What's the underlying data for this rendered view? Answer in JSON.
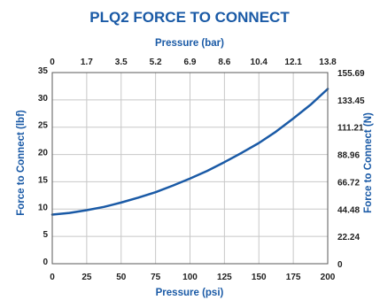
{
  "chart_data": {
    "type": "line",
    "title": "PLQ2 FORCE TO CONNECT",
    "xlabel": "Pressure (psi)",
    "x2label": "Pressure (bar)",
    "ylabel": "Force to Connect (lbf)",
    "y2label": "Force to Connect (N)",
    "xlim": [
      0,
      200
    ],
    "ylim": [
      0,
      35
    ],
    "x_ticks": [
      0,
      25,
      50,
      75,
      100,
      125,
      150,
      175,
      200
    ],
    "y_ticks": [
      0,
      5,
      10,
      15,
      20,
      25,
      30,
      35
    ],
    "x2_ticks": [
      "0",
      "1.7",
      "3.5",
      "5.2",
      "6.9",
      "8.6",
      "10.4",
      "12.1",
      "13.8"
    ],
    "y2_ticks": [
      "0",
      "22.24",
      "44.48",
      "66.72",
      "88.96",
      "111.21",
      "133.45",
      "155.69"
    ],
    "grid": true,
    "series": [
      {
        "x": [
          0,
          12.5,
          25,
          37.5,
          50,
          62.5,
          75,
          87.5,
          100,
          112.5,
          125,
          137.5,
          150,
          162.5,
          175,
          187.5,
          200
        ],
        "values": [
          9.0,
          9.3,
          9.8,
          10.4,
          11.2,
          12.1,
          13.1,
          14.3,
          15.6,
          17.0,
          18.6,
          20.3,
          22.1,
          24.2,
          26.6,
          29.1,
          32.0
        ]
      }
    ],
    "colors": {
      "title": "#1a5aa6",
      "axis_title": "#1a5aa6",
      "line": "#1a5aa6",
      "grid": "#c8c8c8",
      "frame": "#5a5a5a",
      "tick_text": "#1f1f1f"
    }
  }
}
